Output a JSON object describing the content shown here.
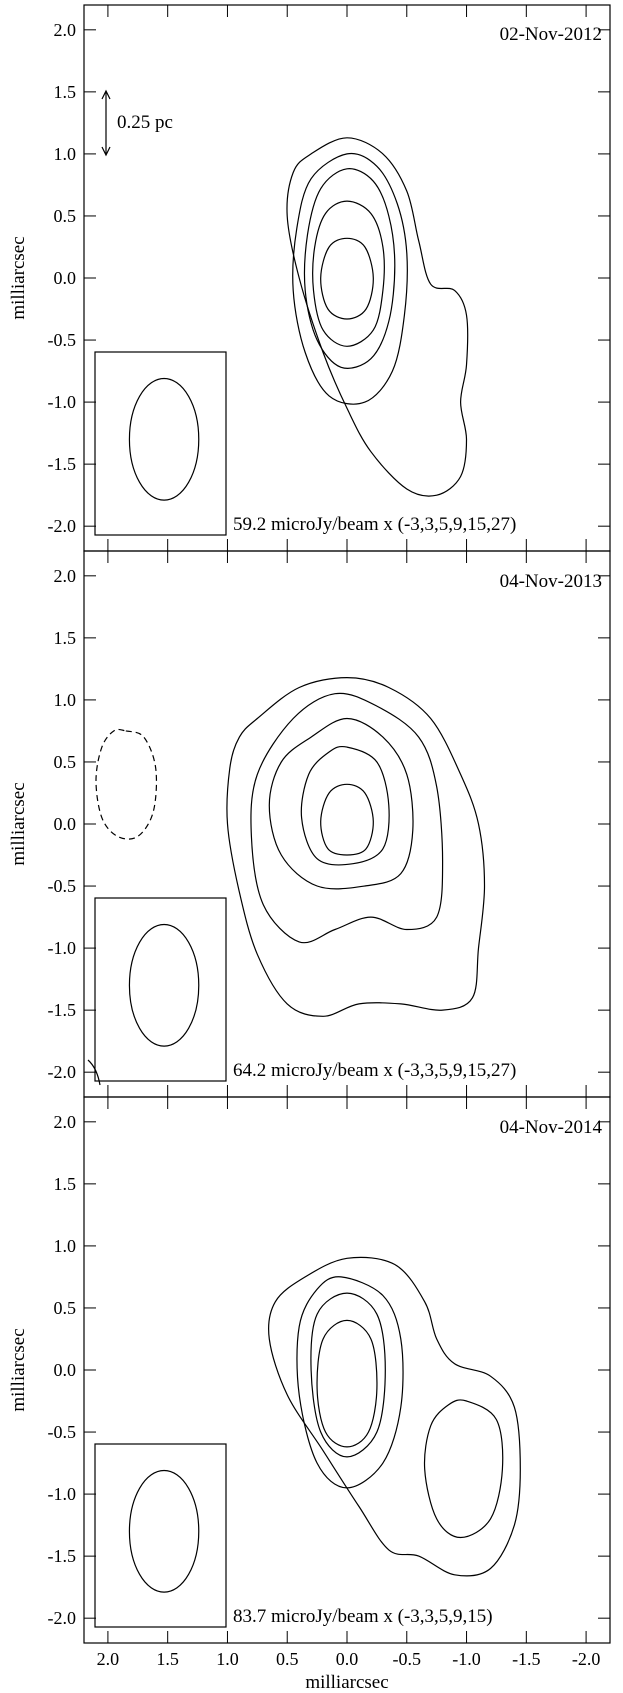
{
  "chart_data": [
    {
      "type": "contour",
      "date_label": "02-Nov-2012",
      "ylabel": "milliarcsec",
      "xlabel": "",
      "xlim": [
        2.2,
        -2.2
      ],
      "ylim": [
        -2.2,
        2.2
      ],
      "yticks": [
        "2.0",
        "1.5",
        "1.0",
        "0.5",
        "0.0",
        "-0.5",
        "-1.0",
        "-1.5",
        "-2.0"
      ],
      "scale_bar": "0.25 pc",
      "contour_note": "59.2 microJy/beam x (-3,3,5,9,15,27)",
      "beam": {
        "x": 1.53,
        "y": -1.3,
        "rx": 0.29,
        "ry": 0.49
      },
      "contours": [
        {
          "dashed": false,
          "points": [
            [
              0.3,
              1.0
            ],
            [
              0.0,
              1.13
            ],
            [
              -0.3,
              1.0
            ],
            [
              -0.5,
              0.7
            ],
            [
              -0.6,
              0.3
            ],
            [
              -0.7,
              -0.05
            ],
            [
              -0.9,
              -0.1
            ],
            [
              -1.0,
              -0.3
            ],
            [
              -1.0,
              -0.7
            ],
            [
              -0.95,
              -1.0
            ],
            [
              -1.0,
              -1.3
            ],
            [
              -0.95,
              -1.6
            ],
            [
              -0.75,
              -1.75
            ],
            [
              -0.5,
              -1.7
            ],
            [
              -0.2,
              -1.4
            ],
            [
              0.0,
              -1.05
            ],
            [
              0.2,
              -0.6
            ],
            [
              0.4,
              0.0
            ],
            [
              0.5,
              0.5
            ],
            [
              0.45,
              0.85
            ]
          ]
        },
        {
          "dashed": false,
          "points": [
            [
              0.0,
              1.0
            ],
            [
              -0.25,
              0.9
            ],
            [
              -0.42,
              0.6
            ],
            [
              -0.5,
              0.2
            ],
            [
              -0.48,
              -0.3
            ],
            [
              -0.38,
              -0.75
            ],
            [
              -0.15,
              -1.0
            ],
            [
              0.15,
              -0.95
            ],
            [
              0.35,
              -0.6
            ],
            [
              0.45,
              -0.1
            ],
            [
              0.42,
              0.4
            ],
            [
              0.3,
              0.8
            ]
          ]
        },
        {
          "dashed": false,
          "points": [
            [
              0.0,
              0.88
            ],
            [
              -0.22,
              0.78
            ],
            [
              -0.35,
              0.5
            ],
            [
              -0.4,
              0.1
            ],
            [
              -0.35,
              -0.35
            ],
            [
              -0.2,
              -0.65
            ],
            [
              0.05,
              -0.72
            ],
            [
              0.25,
              -0.5
            ],
            [
              0.35,
              -0.1
            ],
            [
              0.33,
              0.35
            ],
            [
              0.22,
              0.72
            ]
          ]
        },
        {
          "dashed": false,
          "points": [
            [
              0.0,
              0.62
            ],
            [
              -0.2,
              0.52
            ],
            [
              -0.3,
              0.25
            ],
            [
              -0.3,
              -0.1
            ],
            [
              -0.22,
              -0.42
            ],
            [
              0.0,
              -0.55
            ],
            [
              0.2,
              -0.42
            ],
            [
              0.28,
              -0.1
            ],
            [
              0.27,
              0.25
            ],
            [
              0.18,
              0.52
            ]
          ]
        },
        {
          "dashed": false,
          "points": [
            [
              0.0,
              0.32
            ],
            [
              -0.15,
              0.25
            ],
            [
              -0.22,
              0.0
            ],
            [
              -0.16,
              -0.25
            ],
            [
              0.0,
              -0.33
            ],
            [
              0.16,
              -0.25
            ],
            [
              0.22,
              0.0
            ],
            [
              0.15,
              0.25
            ]
          ]
        }
      ]
    },
    {
      "type": "contour",
      "date_label": "04-Nov-2013",
      "ylabel": "milliarcsec",
      "xlabel": "",
      "xlim": [
        2.2,
        -2.2
      ],
      "ylim": [
        -2.2,
        2.2
      ],
      "yticks": [
        "2.0",
        "1.5",
        "1.0",
        "0.5",
        "0.0",
        "-0.5",
        "-1.0",
        "-1.5",
        "-2.0"
      ],
      "contour_note": "64.2 microJy/beam x (-3,3,5,9,15,27)",
      "beam": {
        "x": 1.53,
        "y": -1.3,
        "rx": 0.29,
        "ry": 0.49
      },
      "contours": [
        {
          "dashed": false,
          "points": [
            [
              0.75,
              0.85
            ],
            [
              0.4,
              1.1
            ],
            [
              0.0,
              1.18
            ],
            [
              -0.35,
              1.1
            ],
            [
              -0.7,
              0.85
            ],
            [
              -0.95,
              0.4
            ],
            [
              -1.1,
              0.0
            ],
            [
              -1.15,
              -0.5
            ],
            [
              -1.1,
              -1.0
            ],
            [
              -1.05,
              -1.4
            ],
            [
              -0.8,
              -1.5
            ],
            [
              -0.45,
              -1.45
            ],
            [
              -0.1,
              -1.45
            ],
            [
              0.2,
              -1.55
            ],
            [
              0.5,
              -1.45
            ],
            [
              0.75,
              -1.05
            ],
            [
              0.9,
              -0.55
            ],
            [
              1.0,
              0.0
            ],
            [
              0.98,
              0.45
            ],
            [
              0.9,
              0.7
            ]
          ]
        },
        {
          "dashed": false,
          "points": [
            [
              0.45,
              0.85
            ],
            [
              0.1,
              1.05
            ],
            [
              -0.25,
              0.95
            ],
            [
              -0.6,
              0.7
            ],
            [
              -0.75,
              0.3
            ],
            [
              -0.8,
              -0.3
            ],
            [
              -0.75,
              -0.75
            ],
            [
              -0.5,
              -0.85
            ],
            [
              -0.2,
              -0.75
            ],
            [
              0.1,
              -0.85
            ],
            [
              0.4,
              -0.95
            ],
            [
              0.7,
              -0.65
            ],
            [
              0.8,
              -0.1
            ],
            [
              0.75,
              0.4
            ]
          ]
        },
        {
          "dashed": false,
          "points": [
            [
              0.3,
              0.7
            ],
            [
              0.0,
              0.85
            ],
            [
              -0.3,
              0.7
            ],
            [
              -0.5,
              0.4
            ],
            [
              -0.55,
              -0.05
            ],
            [
              -0.45,
              -0.4
            ],
            [
              -0.15,
              -0.5
            ],
            [
              0.25,
              -0.5
            ],
            [
              0.55,
              -0.25
            ],
            [
              0.65,
              0.15
            ],
            [
              0.55,
              0.5
            ]
          ]
        },
        {
          "dashed": false,
          "points": [
            [
              0.0,
              0.62
            ],
            [
              -0.25,
              0.5
            ],
            [
              -0.35,
              0.15
            ],
            [
              -0.3,
              -0.2
            ],
            [
              -0.05,
              -0.32
            ],
            [
              0.25,
              -0.28
            ],
            [
              0.38,
              0.05
            ],
            [
              0.32,
              0.4
            ],
            [
              0.15,
              0.58
            ]
          ]
        },
        {
          "dashed": false,
          "points": [
            [
              0.0,
              0.32
            ],
            [
              -0.15,
              0.25
            ],
            [
              -0.22,
              0.02
            ],
            [
              -0.16,
              -0.2
            ],
            [
              0.0,
              -0.25
            ],
            [
              0.16,
              -0.2
            ],
            [
              0.22,
              0.02
            ],
            [
              0.15,
              0.25
            ]
          ]
        },
        {
          "dashed": true,
          "points": [
            [
              1.85,
              0.75
            ],
            [
              1.7,
              0.7
            ],
            [
              1.6,
              0.45
            ],
            [
              1.62,
              0.1
            ],
            [
              1.75,
              -0.1
            ],
            [
              1.92,
              -0.1
            ],
            [
              2.05,
              0.05
            ],
            [
              2.1,
              0.35
            ],
            [
              2.05,
              0.62
            ],
            [
              1.95,
              0.75
            ]
          ]
        }
      ]
    },
    {
      "type": "contour",
      "date_label": "04-Nov-2014",
      "ylabel": "milliarcsec",
      "xlabel": "milliarcsec",
      "xlim": [
        2.2,
        -2.2
      ],
      "ylim": [
        -2.2,
        2.2
      ],
      "yticks": [
        "2.0",
        "1.5",
        "1.0",
        "0.5",
        "0.0",
        "-0.5",
        "-1.0",
        "-1.5",
        "-2.0"
      ],
      "xticks": [
        "2.0",
        "1.5",
        "1.0",
        "0.5",
        "0.0",
        "-0.5",
        "-1.0",
        "-1.5",
        "-2.0"
      ],
      "contour_note": "83.7 microJy/beam x (-3,3,5,9,15)",
      "beam": {
        "x": 1.53,
        "y": -1.3,
        "rx": 0.29,
        "ry": 0.49
      },
      "contours": [
        {
          "dashed": false,
          "points": [
            [
              0.35,
              0.75
            ],
            [
              0.0,
              0.9
            ],
            [
              -0.4,
              0.85
            ],
            [
              -0.65,
              0.55
            ],
            [
              -0.75,
              0.25
            ],
            [
              -0.9,
              0.05
            ],
            [
              -1.2,
              -0.05
            ],
            [
              -1.4,
              -0.3
            ],
            [
              -1.45,
              -0.8
            ],
            [
              -1.4,
              -1.25
            ],
            [
              -1.2,
              -1.6
            ],
            [
              -0.9,
              -1.65
            ],
            [
              -0.6,
              -1.5
            ],
            [
              -0.35,
              -1.45
            ],
            [
              -0.1,
              -1.1
            ],
            [
              0.2,
              -0.65
            ],
            [
              0.5,
              -0.2
            ],
            [
              0.65,
              0.25
            ],
            [
              0.6,
              0.55
            ]
          ]
        },
        {
          "dashed": false,
          "points": [
            [
              0.05,
              0.75
            ],
            [
              -0.3,
              0.6
            ],
            [
              -0.45,
              0.25
            ],
            [
              -0.45,
              -0.3
            ],
            [
              -0.3,
              -0.75
            ],
            [
              0.0,
              -0.95
            ],
            [
              0.25,
              -0.75
            ],
            [
              0.4,
              -0.2
            ],
            [
              0.4,
              0.35
            ],
            [
              0.25,
              0.65
            ]
          ]
        },
        {
          "dashed": false,
          "points": [
            [
              0.0,
              0.62
            ],
            [
              -0.25,
              0.45
            ],
            [
              -0.32,
              0.0
            ],
            [
              -0.25,
              -0.5
            ],
            [
              0.0,
              -0.7
            ],
            [
              0.22,
              -0.5
            ],
            [
              0.3,
              0.0
            ],
            [
              0.25,
              0.45
            ]
          ]
        },
        {
          "dashed": false,
          "points": [
            [
              0.0,
              0.4
            ],
            [
              -0.2,
              0.25
            ],
            [
              -0.25,
              -0.15
            ],
            [
              -0.18,
              -0.5
            ],
            [
              0.0,
              -0.62
            ],
            [
              0.18,
              -0.5
            ],
            [
              0.25,
              -0.15
            ],
            [
              0.2,
              0.25
            ]
          ]
        },
        {
          "dashed": false,
          "points": [
            [
              -1.0,
              -0.25
            ],
            [
              -1.25,
              -0.4
            ],
            [
              -1.3,
              -0.8
            ],
            [
              -1.2,
              -1.2
            ],
            [
              -0.95,
              -1.35
            ],
            [
              -0.75,
              -1.2
            ],
            [
              -0.65,
              -0.8
            ],
            [
              -0.7,
              -0.45
            ],
            [
              -0.85,
              -0.28
            ]
          ]
        }
      ]
    }
  ]
}
